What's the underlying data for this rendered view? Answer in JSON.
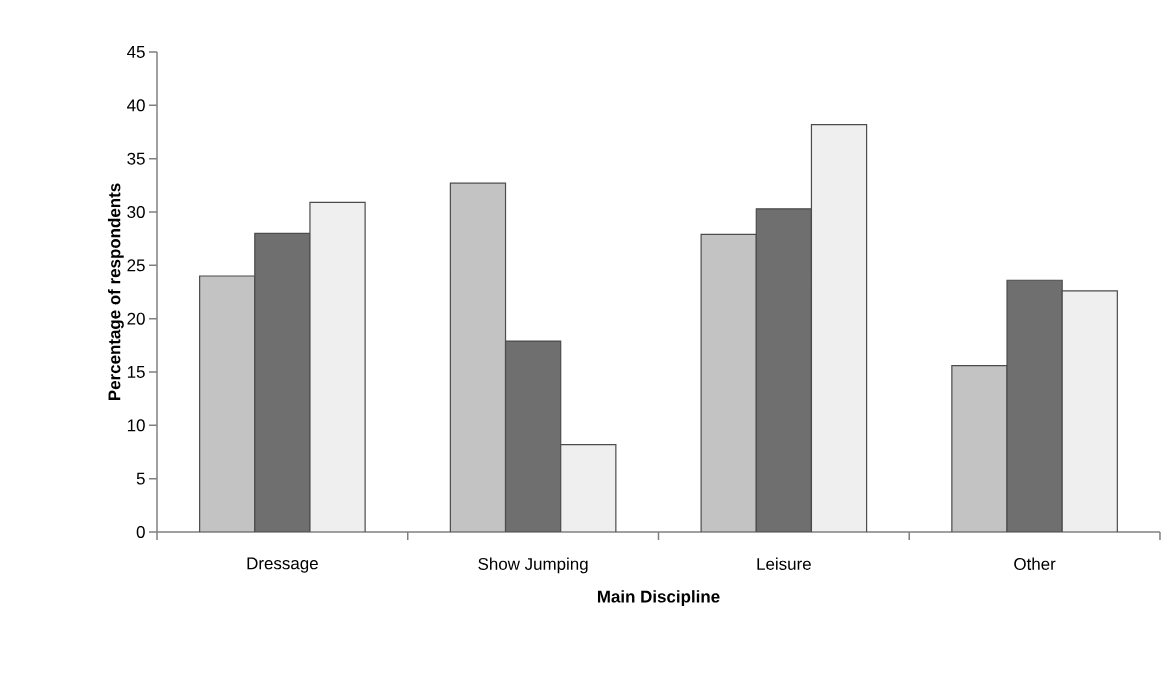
{
  "chart_data": {
    "type": "bar",
    "xlabel": "Main Discipline",
    "ylabel": "Percentage of respondents",
    "categories": [
      "Dressage",
      "Show Jumping",
      "Leisure",
      "Other"
    ],
    "series": [
      {
        "color": "#c3c3c3",
        "values": [
          24.0,
          32.7,
          27.9,
          15.6
        ]
      },
      {
        "color": "#6f6f6f",
        "values": [
          28.0,
          17.9,
          30.3,
          23.6
        ]
      },
      {
        "color": "#efefef",
        "values": [
          30.9,
          8.2,
          38.2,
          22.6
        ]
      }
    ],
    "ylim": [
      0,
      45
    ],
    "yticks": [
      0,
      5,
      10,
      15,
      20,
      25,
      30,
      35,
      40,
      45
    ],
    "grid": false
  }
}
